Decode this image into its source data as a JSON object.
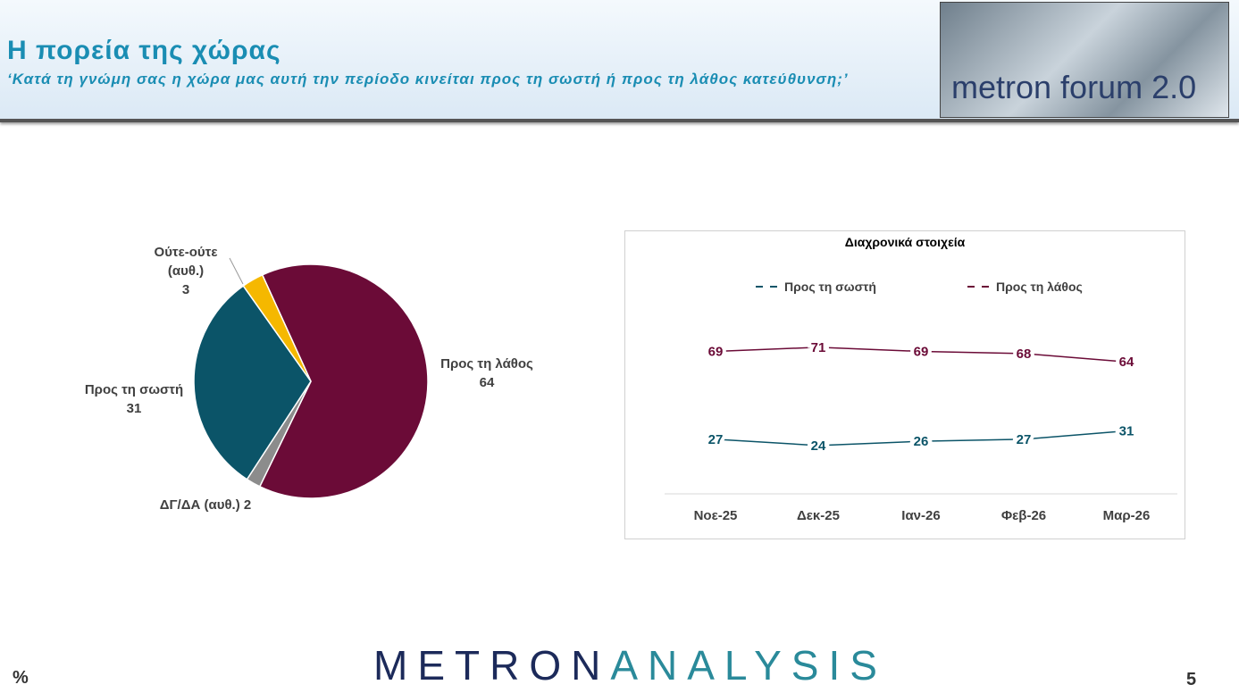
{
  "header": {
    "title": "Η πορεία της χώρας",
    "subtitle": "‘Κατά τη γνώμη σας η χώρα μας αυτή την περίοδο κινείται προς τη σωστή ή προς τη λάθος κατεύθυνση;’",
    "logo": "metron forum 2.0"
  },
  "footer": {
    "brand_left": "METRON",
    "brand_right": "ANALYSIS",
    "unit": "%",
    "page": "5"
  },
  "chart_data": [
    {
      "type": "pie",
      "categories": [
        "Προς τη λάθος",
        "ΔΓ/ΔΑ (αυθ.)",
        "Προς τη σωστή",
        "Ούτε-ούτε (αυθ.)"
      ],
      "values": [
        64,
        2,
        31,
        3
      ],
      "colors": [
        "#6b0b37",
        "#8c8c8c",
        "#0b5468",
        "#f5b800"
      ]
    },
    {
      "type": "line",
      "title": "Διαχρονικά στοιχεία",
      "categories": [
        "Νοε-25",
        "Δεκ-25",
        "Ιαν-26",
        "Φεβ-26",
        "Μαρ-26"
      ],
      "series": [
        {
          "name": "Προς τη σωστή",
          "color": "#0b5468",
          "values": [
            27,
            24,
            26,
            27,
            31
          ]
        },
        {
          "name": "Προς τη λάθος",
          "color": "#6b0b37",
          "values": [
            69,
            71,
            69,
            68,
            64
          ]
        }
      ],
      "ylim": [
        0,
        100
      ]
    }
  ]
}
